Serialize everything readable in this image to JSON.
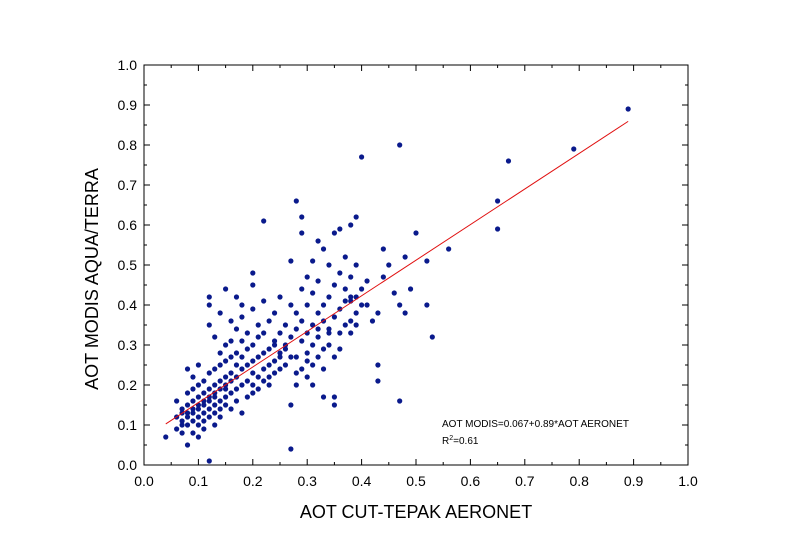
{
  "chart_data": {
    "type": "scatter",
    "title": "",
    "xlabel": "AOT CUT-TEPAK AERONET",
    "ylabel": "AOT MODIS AQUA/TERRA",
    "xlim": [
      0.0,
      1.0
    ],
    "ylim": [
      0.0,
      1.0
    ],
    "xticks": [
      "0.0",
      "0.1",
      "0.2",
      "0.3",
      "0.4",
      "0.5",
      "0.6",
      "0.7",
      "0.8",
      "0.9",
      "1.0"
    ],
    "yticks": [
      "0.0",
      "0.1",
      "0.2",
      "0.3",
      "0.4",
      "0.5",
      "0.6",
      "0.7",
      "0.8",
      "0.9",
      "1.0"
    ],
    "grid": false,
    "colors": {
      "points": "#0a1a8c",
      "fit_line": "#e01010",
      "axes": "#000000"
    },
    "fit": {
      "intercept": 0.067,
      "slope": 0.89,
      "x_range": [
        0.04,
        0.89
      ]
    },
    "annotations": {
      "equation": "AOT MODIS=0.067+0.89*AOT AERONET",
      "r2_prefix": "R",
      "r2_sup": "2",
      "r2_suffix": "=0.61"
    },
    "series": [
      {
        "points": [
          [
            0.04,
            0.07
          ],
          [
            0.06,
            0.12
          ],
          [
            0.06,
            0.09
          ],
          [
            0.06,
            0.16
          ],
          [
            0.07,
            0.1
          ],
          [
            0.07,
            0.13
          ],
          [
            0.07,
            0.11
          ],
          [
            0.07,
            0.14
          ],
          [
            0.07,
            0.08
          ],
          [
            0.08,
            0.12
          ],
          [
            0.08,
            0.15
          ],
          [
            0.08,
            0.1
          ],
          [
            0.08,
            0.18
          ],
          [
            0.08,
            0.13
          ],
          [
            0.08,
            0.24
          ],
          [
            0.08,
            0.05
          ],
          [
            0.09,
            0.11
          ],
          [
            0.09,
            0.14
          ],
          [
            0.09,
            0.16
          ],
          [
            0.09,
            0.19
          ],
          [
            0.09,
            0.13
          ],
          [
            0.09,
            0.22
          ],
          [
            0.09,
            0.08
          ],
          [
            0.1,
            0.12
          ],
          [
            0.1,
            0.15
          ],
          [
            0.1,
            0.17
          ],
          [
            0.1,
            0.1
          ],
          [
            0.1,
            0.2
          ],
          [
            0.1,
            0.25
          ],
          [
            0.1,
            0.14
          ],
          [
            0.1,
            0.07
          ],
          [
            0.11,
            0.13
          ],
          [
            0.11,
            0.16
          ],
          [
            0.11,
            0.18
          ],
          [
            0.11,
            0.11
          ],
          [
            0.11,
            0.21
          ],
          [
            0.11,
            0.09
          ],
          [
            0.11,
            0.15
          ],
          [
            0.12,
            0.14
          ],
          [
            0.12,
            0.17
          ],
          [
            0.12,
            0.19
          ],
          [
            0.12,
            0.12
          ],
          [
            0.12,
            0.23
          ],
          [
            0.12,
            0.35
          ],
          [
            0.12,
            0.4
          ],
          [
            0.12,
            0.42
          ],
          [
            0.12,
            0.16
          ],
          [
            0.12,
            0.01
          ],
          [
            0.13,
            0.15
          ],
          [
            0.13,
            0.18
          ],
          [
            0.13,
            0.2
          ],
          [
            0.13,
            0.13
          ],
          [
            0.13,
            0.24
          ],
          [
            0.13,
            0.1
          ],
          [
            0.13,
            0.32
          ],
          [
            0.13,
            0.17
          ],
          [
            0.14,
            0.16
          ],
          [
            0.14,
            0.19
          ],
          [
            0.14,
            0.21
          ],
          [
            0.14,
            0.14
          ],
          [
            0.14,
            0.25
          ],
          [
            0.14,
            0.28
          ],
          [
            0.14,
            0.38
          ],
          [
            0.14,
            0.12
          ],
          [
            0.15,
            0.17
          ],
          [
            0.15,
            0.2
          ],
          [
            0.15,
            0.22
          ],
          [
            0.15,
            0.15
          ],
          [
            0.15,
            0.26
          ],
          [
            0.15,
            0.3
          ],
          [
            0.15,
            0.44
          ],
          [
            0.15,
            0.19
          ],
          [
            0.16,
            0.18
          ],
          [
            0.16,
            0.21
          ],
          [
            0.16,
            0.23
          ],
          [
            0.16,
            0.27
          ],
          [
            0.16,
            0.31
          ],
          [
            0.16,
            0.36
          ],
          [
            0.16,
            0.14
          ],
          [
            0.17,
            0.19
          ],
          [
            0.17,
            0.22
          ],
          [
            0.17,
            0.25
          ],
          [
            0.17,
            0.28
          ],
          [
            0.17,
            0.34
          ],
          [
            0.17,
            0.16
          ],
          [
            0.17,
            0.42
          ],
          [
            0.18,
            0.2
          ],
          [
            0.18,
            0.24
          ],
          [
            0.18,
            0.27
          ],
          [
            0.18,
            0.31
          ],
          [
            0.18,
            0.37
          ],
          [
            0.18,
            0.13
          ],
          [
            0.18,
            0.4
          ],
          [
            0.19,
            0.21
          ],
          [
            0.19,
            0.25
          ],
          [
            0.19,
            0.29
          ],
          [
            0.19,
            0.33
          ],
          [
            0.19,
            0.17
          ],
          [
            0.2,
            0.2
          ],
          [
            0.2,
            0.23
          ],
          [
            0.2,
            0.26
          ],
          [
            0.2,
            0.3
          ],
          [
            0.2,
            0.39
          ],
          [
            0.2,
            0.48
          ],
          [
            0.2,
            0.45
          ],
          [
            0.2,
            0.18
          ],
          [
            0.21,
            0.22
          ],
          [
            0.21,
            0.27
          ],
          [
            0.21,
            0.32
          ],
          [
            0.21,
            0.35
          ],
          [
            0.21,
            0.19
          ],
          [
            0.22,
            0.21
          ],
          [
            0.22,
            0.24
          ],
          [
            0.22,
            0.28
          ],
          [
            0.22,
            0.41
          ],
          [
            0.22,
            0.61
          ],
          [
            0.22,
            0.33
          ],
          [
            0.23,
            0.2
          ],
          [
            0.23,
            0.25
          ],
          [
            0.23,
            0.29
          ],
          [
            0.23,
            0.36
          ],
          [
            0.23,
            0.22
          ],
          [
            0.24,
            0.23
          ],
          [
            0.24,
            0.26
          ],
          [
            0.24,
            0.31
          ],
          [
            0.24,
            0.38
          ],
          [
            0.24,
            0.3
          ],
          [
            0.25,
            0.24
          ],
          [
            0.25,
            0.28
          ],
          [
            0.25,
            0.33
          ],
          [
            0.25,
            0.42
          ],
          [
            0.25,
            0.27
          ],
          [
            0.26,
            0.25
          ],
          [
            0.26,
            0.3
          ],
          [
            0.26,
            0.35
          ],
          [
            0.26,
            0.29
          ],
          [
            0.27,
            0.15
          ],
          [
            0.27,
            0.04
          ],
          [
            0.27,
            0.32
          ],
          [
            0.27,
            0.4
          ],
          [
            0.27,
            0.51
          ],
          [
            0.27,
            0.27
          ],
          [
            0.28,
            0.2
          ],
          [
            0.28,
            0.27
          ],
          [
            0.28,
            0.34
          ],
          [
            0.28,
            0.38
          ],
          [
            0.28,
            0.66
          ],
          [
            0.28,
            0.23
          ],
          [
            0.29,
            0.24
          ],
          [
            0.29,
            0.31
          ],
          [
            0.29,
            0.36
          ],
          [
            0.29,
            0.44
          ],
          [
            0.29,
            0.58
          ],
          [
            0.29,
            0.62
          ],
          [
            0.3,
            0.22
          ],
          [
            0.3,
            0.28
          ],
          [
            0.3,
            0.33
          ],
          [
            0.3,
            0.4
          ],
          [
            0.3,
            0.47
          ],
          [
            0.3,
            0.26
          ],
          [
            0.31,
            0.25
          ],
          [
            0.31,
            0.3
          ],
          [
            0.31,
            0.35
          ],
          [
            0.31,
            0.43
          ],
          [
            0.31,
            0.51
          ],
          [
            0.31,
            0.2
          ],
          [
            0.32,
            0.27
          ],
          [
            0.32,
            0.32
          ],
          [
            0.32,
            0.38
          ],
          [
            0.32,
            0.46
          ],
          [
            0.32,
            0.56
          ],
          [
            0.32,
            0.34
          ],
          [
            0.33,
            0.24
          ],
          [
            0.33,
            0.29
          ],
          [
            0.33,
            0.36
          ],
          [
            0.33,
            0.4
          ],
          [
            0.33,
            0.54
          ],
          [
            0.33,
            0.17
          ],
          [
            0.34,
            0.3
          ],
          [
            0.34,
            0.34
          ],
          [
            0.34,
            0.42
          ],
          [
            0.34,
            0.5
          ],
          [
            0.34,
            0.33
          ],
          [
            0.35,
            0.15
          ],
          [
            0.35,
            0.17
          ],
          [
            0.35,
            0.37
          ],
          [
            0.35,
            0.45
          ],
          [
            0.35,
            0.58
          ],
          [
            0.35,
            0.27
          ],
          [
            0.36,
            0.33
          ],
          [
            0.36,
            0.39
          ],
          [
            0.36,
            0.48
          ],
          [
            0.36,
            0.59
          ],
          [
            0.36,
            0.29
          ],
          [
            0.37,
            0.35
          ],
          [
            0.37,
            0.41
          ],
          [
            0.37,
            0.52
          ],
          [
            0.37,
            0.44
          ],
          [
            0.38,
            0.33
          ],
          [
            0.38,
            0.36
          ],
          [
            0.38,
            0.41
          ],
          [
            0.38,
            0.47
          ],
          [
            0.38,
            0.6
          ],
          [
            0.38,
            0.42
          ],
          [
            0.39,
            0.38
          ],
          [
            0.39,
            0.42
          ],
          [
            0.39,
            0.5
          ],
          [
            0.39,
            0.62
          ],
          [
            0.39,
            0.35
          ],
          [
            0.4,
            0.77
          ],
          [
            0.4,
            0.4
          ],
          [
            0.4,
            0.44
          ],
          [
            0.41,
            0.4
          ],
          [
            0.41,
            0.46
          ],
          [
            0.42,
            0.36
          ],
          [
            0.43,
            0.21
          ],
          [
            0.43,
            0.25
          ],
          [
            0.43,
            0.38
          ],
          [
            0.44,
            0.47
          ],
          [
            0.44,
            0.54
          ],
          [
            0.45,
            0.5
          ],
          [
            0.46,
            0.43
          ],
          [
            0.47,
            0.16
          ],
          [
            0.47,
            0.4
          ],
          [
            0.47,
            0.8
          ],
          [
            0.48,
            0.38
          ],
          [
            0.48,
            0.52
          ],
          [
            0.49,
            0.44
          ],
          [
            0.5,
            0.58
          ],
          [
            0.52,
            0.4
          ],
          [
            0.52,
            0.51
          ],
          [
            0.53,
            0.32
          ],
          [
            0.56,
            0.54
          ],
          [
            0.65,
            0.59
          ],
          [
            0.65,
            0.66
          ],
          [
            0.67,
            0.76
          ],
          [
            0.79,
            0.79
          ],
          [
            0.89,
            0.89
          ]
        ]
      }
    ]
  }
}
